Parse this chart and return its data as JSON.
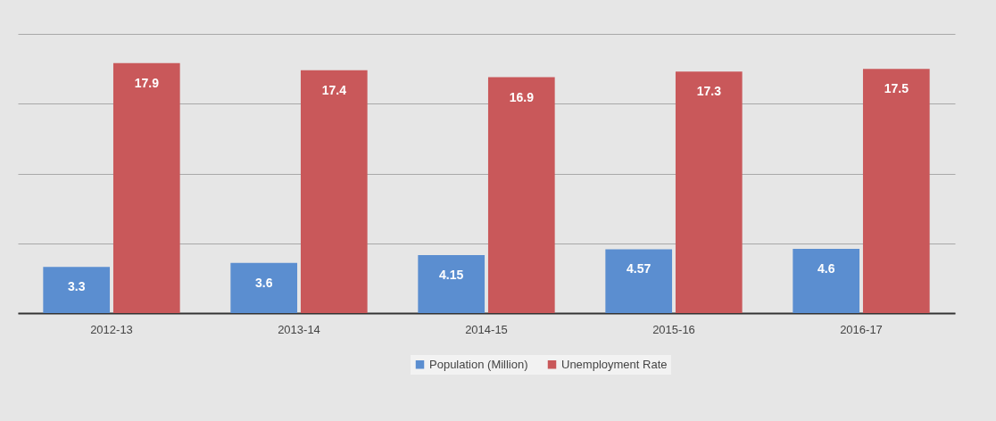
{
  "chart_data": {
    "type": "bar",
    "categories": [
      "2012-13",
      "2013-14",
      "2014-15",
      "2015-16",
      "2016-17"
    ],
    "series": [
      {
        "name": "Population (Million)",
        "color": "#5b8ed0",
        "values": [
          3.3,
          3.6,
          4.15,
          4.57,
          4.6
        ]
      },
      {
        "name": "Unemployment Rate",
        "color": "#c9585a",
        "values": [
          17.9,
          17.4,
          16.9,
          17.3,
          17.5
        ]
      }
    ],
    "ylim": [
      0,
      20
    ],
    "yticks": [
      0,
      5,
      10,
      15,
      20
    ],
    "grid": "y",
    "tick_labels": "x",
    "legend": "bottom",
    "data_labels": true
  }
}
